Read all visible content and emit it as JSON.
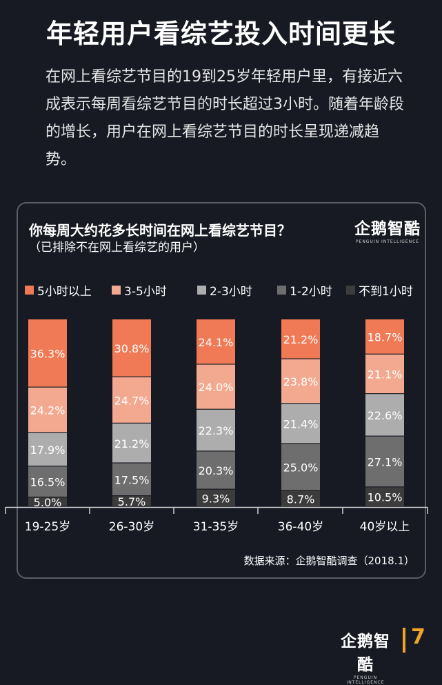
{
  "header": {
    "title": "年轻用户看综艺投入时间更长",
    "description": "在网上看综艺节目的19到25岁年轻用户里，有接近六成表示每周看综艺节目的时长超过3小时。随着年龄段的增长，用户在网上看综艺节目的时长呈现递减趋势。"
  },
  "brand": {
    "name_cn": "企鹅智酷",
    "name_en": "PENGUIN INTELLIGENCE"
  },
  "chart_data": {
    "type": "bar",
    "stacked": true,
    "title": "你每周大约花多长时间在网上看综艺节目？",
    "subtitle": "（已排除不在网上看综艺的用户）",
    "categories": [
      "19-25岁",
      "26-30岁",
      "31-35岁",
      "36-40岁",
      "40岁以上"
    ],
    "value_unit": "%",
    "legend_position": "top",
    "series": [
      {
        "name": "5小时以上",
        "color": "#ef7a55",
        "values": [
          36.3,
          30.8,
          24.1,
          21.2,
          18.7
        ]
      },
      {
        "name": "3-5小时",
        "color": "#f3a98f",
        "values": [
          24.2,
          24.7,
          24.0,
          23.8,
          21.1
        ]
      },
      {
        "name": "2-3小时",
        "color": "#adadad",
        "values": [
          17.9,
          21.2,
          22.3,
          21.4,
          22.6
        ]
      },
      {
        "name": "1-2小时",
        "color": "#6e6e6e",
        "values": [
          16.5,
          17.5,
          20.3,
          25.0,
          27.1
        ]
      },
      {
        "name": "不到1小时",
        "color": "#3c3c3c",
        "values": [
          5.0,
          5.7,
          9.3,
          8.7,
          10.5
        ]
      }
    ],
    "source": "数据来源：企鹅智酷调查（2018.1）"
  },
  "page": {
    "number": "7"
  }
}
